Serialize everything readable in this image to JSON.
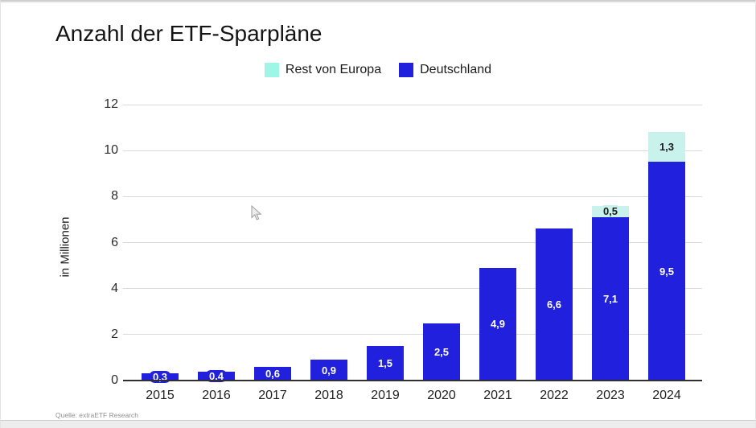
{
  "page": {
    "title": "Anzahl der ETF-Sparpläne",
    "source": "Quelle: extraETF Research",
    "background": "#ffffff"
  },
  "icons": {
    "cursor": "arrow-pointer"
  },
  "legend": {
    "items": [
      {
        "label": "Rest von Europa",
        "color": "#9ff5e6"
      },
      {
        "label": "Deutschland",
        "color": "#2121dd"
      }
    ]
  },
  "chart_data": {
    "type": "bar",
    "stacked": true,
    "title": "Anzahl der ETF-Sparpläne",
    "ylabel": "in Millionen",
    "ylim": [
      0,
      12
    ],
    "yticks": [
      0,
      2,
      4,
      6,
      8,
      10,
      12
    ],
    "grid": true,
    "legend_position": "top-center",
    "categories": [
      "2015",
      "2016",
      "2017",
      "2018",
      "2019",
      "2020",
      "2021",
      "2022",
      "2023",
      "2024"
    ],
    "series": [
      {
        "name": "Deutschland",
        "color": "#2121dd",
        "label_color": "#ffffff",
        "values": [
          0.3,
          0.4,
          0.6,
          0.9,
          1.5,
          2.5,
          4.9,
          6.6,
          7.1,
          9.5
        ],
        "labels": [
          "0,3",
          "0,4",
          "0,6",
          "0,9",
          "1,5",
          "2,5",
          "4,9",
          "6,6",
          "7,1",
          "9,5"
        ]
      },
      {
        "name": "Rest von Europa",
        "color": "#c9f2ec",
        "label_color": "#1a1a1a",
        "values": [
          null,
          null,
          null,
          null,
          null,
          null,
          null,
          null,
          0.5,
          1.3
        ],
        "labels": [
          null,
          null,
          null,
          null,
          null,
          null,
          null,
          null,
          "0,5",
          "1,3"
        ]
      }
    ],
    "axis_color": "#2f2f2f",
    "gridline_color": "#d9d9d9"
  }
}
